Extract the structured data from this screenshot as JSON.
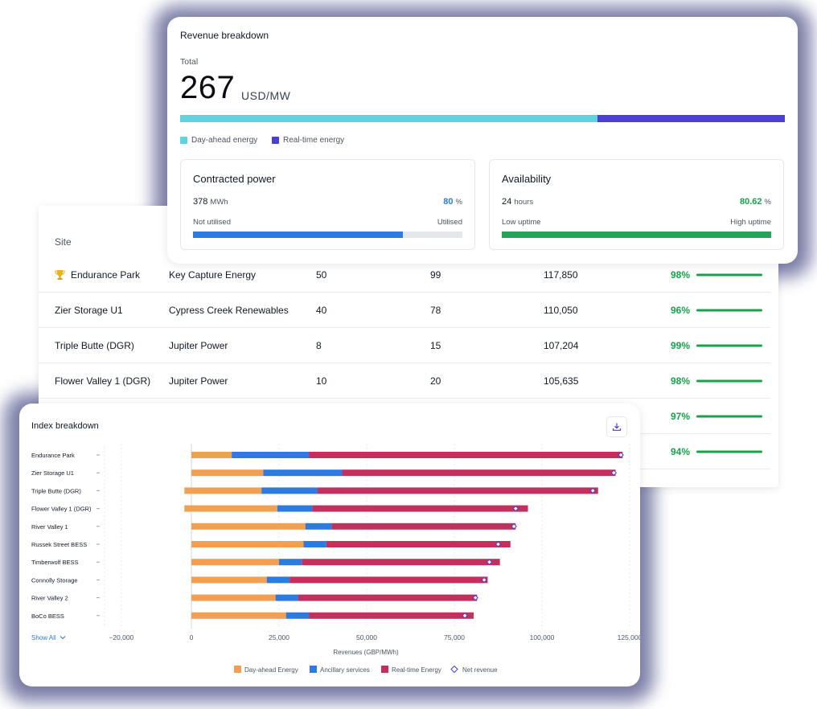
{
  "revenue_breakdown": {
    "title": "Revenue breakdown",
    "total_label": "Total",
    "total_value": "267",
    "total_unit": "USD/MW",
    "split_fraction_day_ahead": 0.69,
    "legend": [
      {
        "label": "Day-ahead energy",
        "color": "#5fd3e0"
      },
      {
        "label": "Real-time energy",
        "color": "#4b3fd6"
      }
    ],
    "contracted": {
      "title": "Contracted power",
      "value": "378",
      "value_unit": "MWh",
      "percent": "80",
      "percent_symbol": "%",
      "left_label": "Not utilised",
      "right_label": "Utilised",
      "fill_fraction": 0.78,
      "color": "#2e7be0"
    },
    "availability": {
      "title": "Availability",
      "value": "24",
      "value_unit": "hours",
      "percent": "80.62",
      "percent_symbol": "%",
      "left_label": "Low uptime",
      "right_label": "High uptime",
      "fill_fraction": 1.0,
      "color": "#22a55a"
    }
  },
  "site_table": {
    "header_site": "Site",
    "rows": [
      {
        "site": "Endurance Park",
        "developer": "Key Capture Energy",
        "v1": "50",
        "v2": "99",
        "v3": "117,850",
        "pct": "98%",
        "trophy": true
      },
      {
        "site": "Zier Storage U1",
        "developer": "Cypress Creek Renewables",
        "v1": "40",
        "v2": "78",
        "v3": "110,050",
        "pct": "96%"
      },
      {
        "site": "Triple Butte (DGR)",
        "developer": "Jupiter Power",
        "v1": "8",
        "v2": "15",
        "v3": "107,204",
        "pct": "99%"
      },
      {
        "site": "Flower Valley 1 (DGR)",
        "developer": "Jupiter Power",
        "v1": "10",
        "v2": "20",
        "v3": "105,635",
        "pct": "98%"
      },
      {
        "site": "",
        "developer": "",
        "v1": "",
        "v2": "",
        "v3": "",
        "pct": "97%"
      },
      {
        "site": "",
        "developer": "",
        "v1": "",
        "v2": "",
        "v3": "",
        "pct": "94%"
      }
    ]
  },
  "index_breakdown": {
    "title": "Index breakdown",
    "show_all": "Show All",
    "icons": {
      "download": "download-icon",
      "chevron": "chevron-down-icon",
      "trophy": "trophy-icon"
    }
  },
  "chart_data": {
    "type": "bar",
    "orientation": "horizontal",
    "stacked": true,
    "xlabel": "Revenues (GBP/MWh)",
    "xlim": [
      -20000,
      125000
    ],
    "xticks": [
      -20000,
      0,
      25000,
      50000,
      75000,
      100000,
      125000
    ],
    "xtick_labels": [
      "−20,000",
      "0",
      "25,000",
      "50,000",
      "75,000",
      "100,000",
      "125,000"
    ],
    "categories": [
      "Endurance Park",
      "Zier Storage U1",
      "Triple Butte (DGR)",
      "Flower Valley 1 (DGR)",
      "River Valley 1",
      "Russek Street BESS",
      "Timberwolf BESS",
      "Connolly Storage",
      "River Valley 2",
      "BoCo BESS"
    ],
    "series": [
      {
        "name": "Day-ahead Energy",
        "color": "#f0a050",
        "start": [
          0,
          0,
          -2000,
          -2000,
          0,
          0,
          0,
          0,
          0,
          0
        ],
        "values": [
          11500,
          20500,
          22000,
          26500,
          32500,
          32000,
          25000,
          21500,
          24000,
          27000
        ]
      },
      {
        "name": "Ancillary services",
        "color": "#2e7be0",
        "values": [
          22000,
          22500,
          16000,
          10000,
          7500,
          6500,
          6500,
          6500,
          6500,
          6500
        ]
      },
      {
        "name": "Real-time Energy",
        "color": "#c4305e",
        "values": [
          89500,
          78000,
          80000,
          61500,
          52500,
          52500,
          56500,
          56500,
          51000,
          47000
        ]
      }
    ],
    "net_revenue": {
      "name": "Net revenue",
      "values": [
        122500,
        120500,
        114500,
        92500,
        92000,
        87500,
        85000,
        83500,
        81000,
        78000
      ]
    },
    "legend_position": "bottom"
  }
}
